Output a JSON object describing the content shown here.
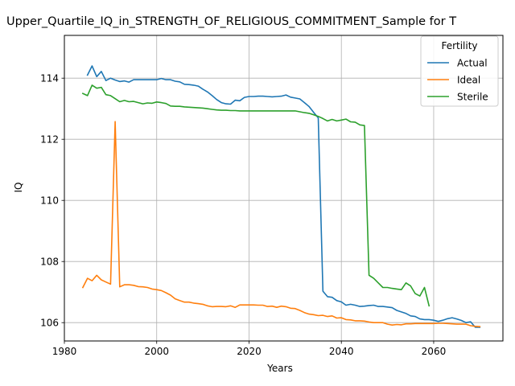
{
  "chart_data": {
    "type": "line",
    "title": "Upper_Quartile_IQ_in_STRENGTH_OF_RELIGIOUS_COMMITMENT_Sample for T",
    "xlabel": "Years",
    "ylabel": "IQ",
    "xlim": [
      1980,
      2075
    ],
    "ylim": [
      105.4,
      115.4
    ],
    "xticks": [
      1980,
      2000,
      2020,
      2040,
      2060
    ],
    "yticks": [
      106,
      108,
      110,
      112,
      114
    ],
    "grid": true,
    "legend": {
      "title": "Fertility",
      "placement": "top-right"
    },
    "series": [
      {
        "name": "Actual",
        "color": "#1f77b4",
        "x": [
          1985,
          1986,
          1987,
          1988,
          1989,
          1990,
          1991,
          1992,
          1993,
          1994,
          1995,
          1996,
          1997,
          1998,
          1999,
          2000,
          2001,
          2002,
          2003,
          2004,
          2005,
          2006,
          2007,
          2008,
          2009,
          2010,
          2011,
          2012,
          2013,
          2014,
          2015,
          2016,
          2017,
          2018,
          2019,
          2020,
          2021,
          2022,
          2023,
          2024,
          2025,
          2026,
          2027,
          2028,
          2029,
          2030,
          2031,
          2032,
          2033,
          2034,
          2035,
          2036,
          2037,
          2038,
          2039,
          2040,
          2041,
          2042,
          2043,
          2044,
          2045,
          2046,
          2047,
          2048,
          2049,
          2050,
          2051,
          2052,
          2053,
          2054,
          2055,
          2056,
          2057,
          2058,
          2059,
          2060,
          2061,
          2062,
          2063,
          2064,
          2065,
          2066,
          2067,
          2068,
          2069,
          2070
        ],
        "values": [
          114.1,
          114.4,
          114.05,
          114.22,
          113.92,
          114.0,
          113.94,
          113.89,
          113.91,
          113.87,
          113.95,
          113.95,
          113.95,
          113.95,
          113.95,
          113.95,
          113.99,
          113.95,
          113.95,
          113.9,
          113.88,
          113.8,
          113.79,
          113.77,
          113.74,
          113.64,
          113.55,
          113.43,
          113.3,
          113.2,
          113.16,
          113.15,
          113.28,
          113.26,
          113.37,
          113.4,
          113.4,
          113.41,
          113.41,
          113.4,
          113.39,
          113.4,
          113.41,
          113.45,
          113.38,
          113.35,
          113.32,
          113.2,
          113.07,
          112.88,
          112.7,
          107.03,
          106.85,
          106.83,
          106.72,
          106.68,
          106.57,
          106.6,
          106.57,
          106.53,
          106.54,
          106.56,
          106.57,
          106.53,
          106.53,
          106.51,
          106.49,
          106.4,
          106.35,
          106.3,
          106.22,
          106.2,
          106.12,
          106.1,
          106.1,
          106.08,
          106.04,
          106.08,
          106.13,
          106.16,
          106.12,
          106.07,
          106.0,
          106.03,
          105.85,
          105.85
        ]
      },
      {
        "name": "Ideal",
        "color": "#ff7f0e",
        "x": [
          1984,
          1985,
          1986,
          1987,
          1988,
          1989,
          1990,
          1991,
          1992,
          1993,
          1994,
          1995,
          1996,
          1997,
          1998,
          1999,
          2000,
          2001,
          2002,
          2003,
          2004,
          2005,
          2006,
          2007,
          2008,
          2009,
          2010,
          2011,
          2012,
          2013,
          2014,
          2015,
          2016,
          2017,
          2018,
          2019,
          2020,
          2021,
          2022,
          2023,
          2024,
          2025,
          2026,
          2027,
          2028,
          2029,
          2030,
          2031,
          2032,
          2033,
          2034,
          2035,
          2036,
          2037,
          2038,
          2039,
          2040,
          2041,
          2042,
          2043,
          2044,
          2045,
          2046,
          2047,
          2048,
          2049,
          2050,
          2051,
          2052,
          2053,
          2054,
          2055,
          2056,
          2057,
          2058,
          2059,
          2060,
          2061,
          2062,
          2063,
          2064,
          2065,
          2066,
          2067,
          2068,
          2069,
          2070
        ],
        "values": [
          107.15,
          107.45,
          107.37,
          107.55,
          107.4,
          107.33,
          107.26,
          112.58,
          107.17,
          107.24,
          107.24,
          107.22,
          107.18,
          107.17,
          107.15,
          107.1,
          107.08,
          107.05,
          106.98,
          106.9,
          106.78,
          106.72,
          106.67,
          106.67,
          106.64,
          106.62,
          106.6,
          106.55,
          106.52,
          106.53,
          106.53,
          106.52,
          106.55,
          106.5,
          106.58,
          106.58,
          106.58,
          106.58,
          106.57,
          106.57,
          106.53,
          106.54,
          106.5,
          106.54,
          106.52,
          106.47,
          106.46,
          106.4,
          106.33,
          106.28,
          106.26,
          106.23,
          106.24,
          106.2,
          106.22,
          106.15,
          106.16,
          106.1,
          106.09,
          106.06,
          106.06,
          106.05,
          106.02,
          106.0,
          106.0,
          106.0,
          105.95,
          105.92,
          105.94,
          105.93,
          105.96,
          105.96,
          105.97,
          105.97,
          105.97,
          105.97,
          105.97,
          105.98,
          105.98,
          105.97,
          105.96,
          105.95,
          105.95,
          105.95,
          105.9,
          105.88,
          105.87
        ]
      },
      {
        "name": "Sterile",
        "color": "#2ca02c",
        "x": [
          1984,
          1985,
          1986,
          1987,
          1988,
          1989,
          1990,
          1991,
          1992,
          1993,
          1994,
          1995,
          1996,
          1997,
          1998,
          1999,
          2000,
          2001,
          2002,
          2003,
          2004,
          2005,
          2006,
          2007,
          2008,
          2009,
          2010,
          2011,
          2012,
          2013,
          2014,
          2015,
          2016,
          2017,
          2018,
          2019,
          2020,
          2021,
          2022,
          2023,
          2024,
          2025,
          2026,
          2027,
          2028,
          2029,
          2030,
          2031,
          2032,
          2033,
          2034,
          2035,
          2036,
          2037,
          2038,
          2039,
          2040,
          2041,
          2042,
          2043,
          2044,
          2045,
          2046,
          2047,
          2048,
          2049,
          2050,
          2051,
          2052,
          2053,
          2054,
          2055,
          2056,
          2057,
          2058,
          2059
        ],
        "values": [
          113.5,
          113.43,
          113.77,
          113.67,
          113.7,
          113.46,
          113.43,
          113.33,
          113.23,
          113.27,
          113.23,
          113.24,
          113.2,
          113.16,
          113.19,
          113.18,
          113.22,
          113.2,
          113.17,
          113.09,
          113.08,
          113.08,
          113.06,
          113.05,
          113.04,
          113.03,
          113.02,
          113.0,
          112.98,
          112.96,
          112.95,
          112.95,
          112.94,
          112.94,
          112.93,
          112.93,
          112.93,
          112.93,
          112.93,
          112.93,
          112.93,
          112.93,
          112.93,
          112.93,
          112.93,
          112.93,
          112.93,
          112.9,
          112.87,
          112.85,
          112.8,
          112.75,
          112.68,
          112.6,
          112.65,
          112.6,
          112.63,
          112.66,
          112.57,
          112.56,
          112.47,
          112.45,
          107.55,
          107.45,
          107.3,
          107.15,
          107.15,
          107.12,
          107.1,
          107.08,
          107.3,
          107.2,
          106.95,
          106.87,
          107.15,
          106.55
        ]
      }
    ]
  }
}
